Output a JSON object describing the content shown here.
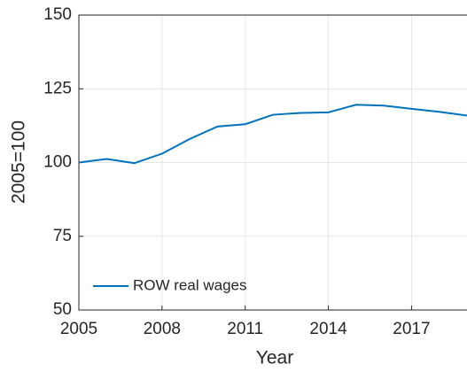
{
  "chart_data": {
    "type": "line",
    "x_label": "Year",
    "y_label": "2005=100",
    "x": [
      2005,
      2006,
      2007,
      2008,
      2009,
      2010,
      2011,
      2012,
      2013,
      2014,
      2015,
      2016,
      2017,
      2018,
      2019
    ],
    "series": [
      {
        "name": "ROW real wages",
        "color": "#0072bd",
        "values": [
          100,
          101.2,
          99.8,
          103,
          108,
          112.2,
          113,
          116.2,
          116.8,
          117,
          119.6,
          119.3,
          118.2,
          117.2,
          115.9
        ]
      }
    ],
    "xlim": [
      2005,
      2019
    ],
    "xticks": [
      2005,
      2008,
      2011,
      2014,
      2017
    ],
    "ylim": [
      50,
      150
    ],
    "yticks": [
      50,
      75,
      100,
      125,
      150
    ],
    "grid": true,
    "legend": "lower left"
  }
}
